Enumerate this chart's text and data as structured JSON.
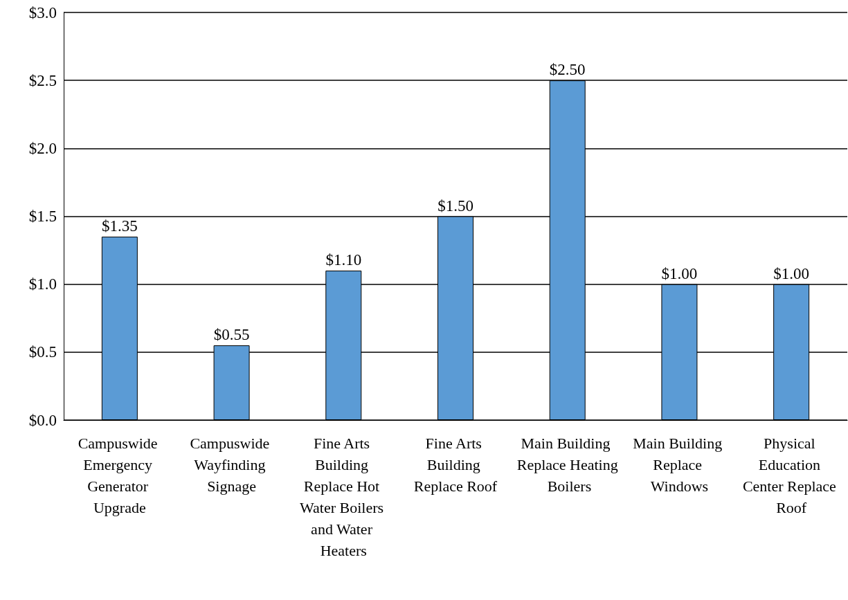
{
  "chart_data": {
    "type": "bar",
    "categories": [
      "Campuswide Emergency Generator Upgrade",
      "Campuswide Wayfinding Signage",
      "Fine Arts Building Replace Hot Water Boilers and Water Heaters",
      "Fine Arts Building Replace Roof",
      "Main Building Replace Heating Boilers",
      "Main Building Replace Windows",
      "Physical Education Center Replace Roof"
    ],
    "values": [
      1.35,
      0.55,
      1.1,
      1.5,
      2.5,
      1.0,
      1.0
    ],
    "value_labels": [
      "$1.35",
      "$0.55",
      "$1.10",
      "$1.50",
      "$2.50",
      "$1.00",
      "$1.00"
    ],
    "color": "#5b9bd5",
    "ylim": [
      0,
      3
    ],
    "yticks": [
      {
        "value": 0,
        "label": "$0.0"
      },
      {
        "value": 0.5,
        "label": "$0.5"
      },
      {
        "value": 1,
        "label": "$1.0"
      },
      {
        "value": 1.5,
        "label": "$1.5"
      },
      {
        "value": 2,
        "label": "$2.0"
      },
      {
        "value": 2.5,
        "label": "$2.5"
      },
      {
        "value": 3,
        "label": "$3.0"
      }
    ],
    "grid": "y"
  }
}
